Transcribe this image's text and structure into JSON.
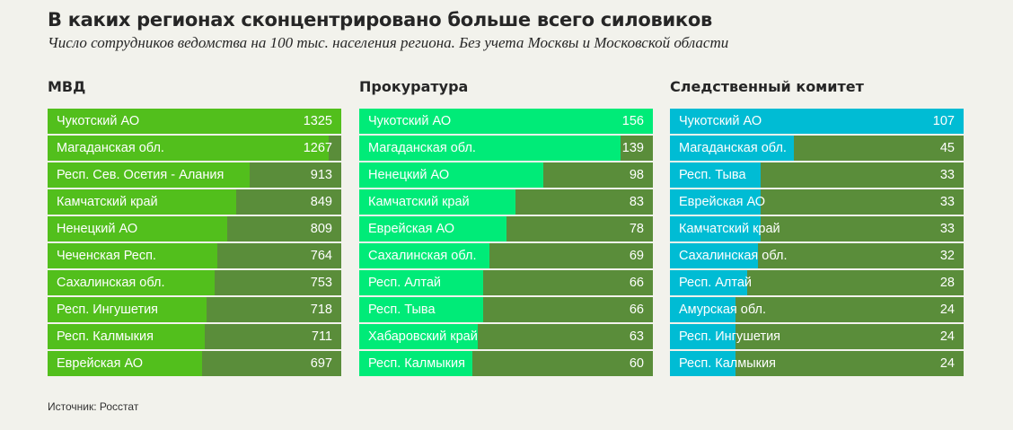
{
  "title": "В каких регионах сконцентрировано больше всего силовиков",
  "subtitle": "Число сотрудников ведомства на 100 тыс. населения региона. Без учета Москвы и Московской области",
  "source": "Источник: Росстат",
  "colors": {
    "background": "#f2f2ec",
    "track": "#5a8d3a",
    "mvd": "#52bf1c",
    "prokuratura": "#00eb78",
    "sk": "#00bcd4"
  },
  "chart_data": [
    {
      "type": "bar",
      "orientation": "horizontal",
      "title": "МВД",
      "categories": [
        "Чукотский АО",
        "Магаданская обл.",
        "Респ. Сев. Осетия - Алания",
        "Камчатский край",
        "Ненецкий АО",
        "Чеченская Респ.",
        "Сахалинская обл.",
        "Респ. Ингушетия",
        "Респ. Калмыкия",
        "Еврейская АО"
      ],
      "values": [
        1325,
        1267,
        913,
        849,
        809,
        764,
        753,
        718,
        711,
        697
      ]
    },
    {
      "type": "bar",
      "orientation": "horizontal",
      "title": "Прокуратура",
      "categories": [
        "Чукотский АО",
        "Магаданская обл.",
        "Ненецкий АО",
        "Камчатский край",
        "Еврейская АО",
        "Сахалинская обл.",
        "Респ. Алтай",
        "Респ. Тыва",
        "Хабаровский край",
        "Респ. Калмыкия"
      ],
      "values": [
        156,
        139,
        98,
        83,
        78,
        69,
        66,
        66,
        63,
        60
      ]
    },
    {
      "type": "bar",
      "orientation": "horizontal",
      "title": "Следственный комитет",
      "categories": [
        "Чукотский АО",
        "Магаданская обл.",
        "Респ. Тыва",
        "Еврейская АО",
        "Камчатский край",
        "Сахалинская обл.",
        "Респ. Алтай",
        "Амурская обл.",
        "Респ. Ингушетия",
        "Респ. Калмыкия"
      ],
      "values": [
        107,
        45,
        33,
        33,
        33,
        32,
        28,
        24,
        24,
        24
      ]
    }
  ]
}
